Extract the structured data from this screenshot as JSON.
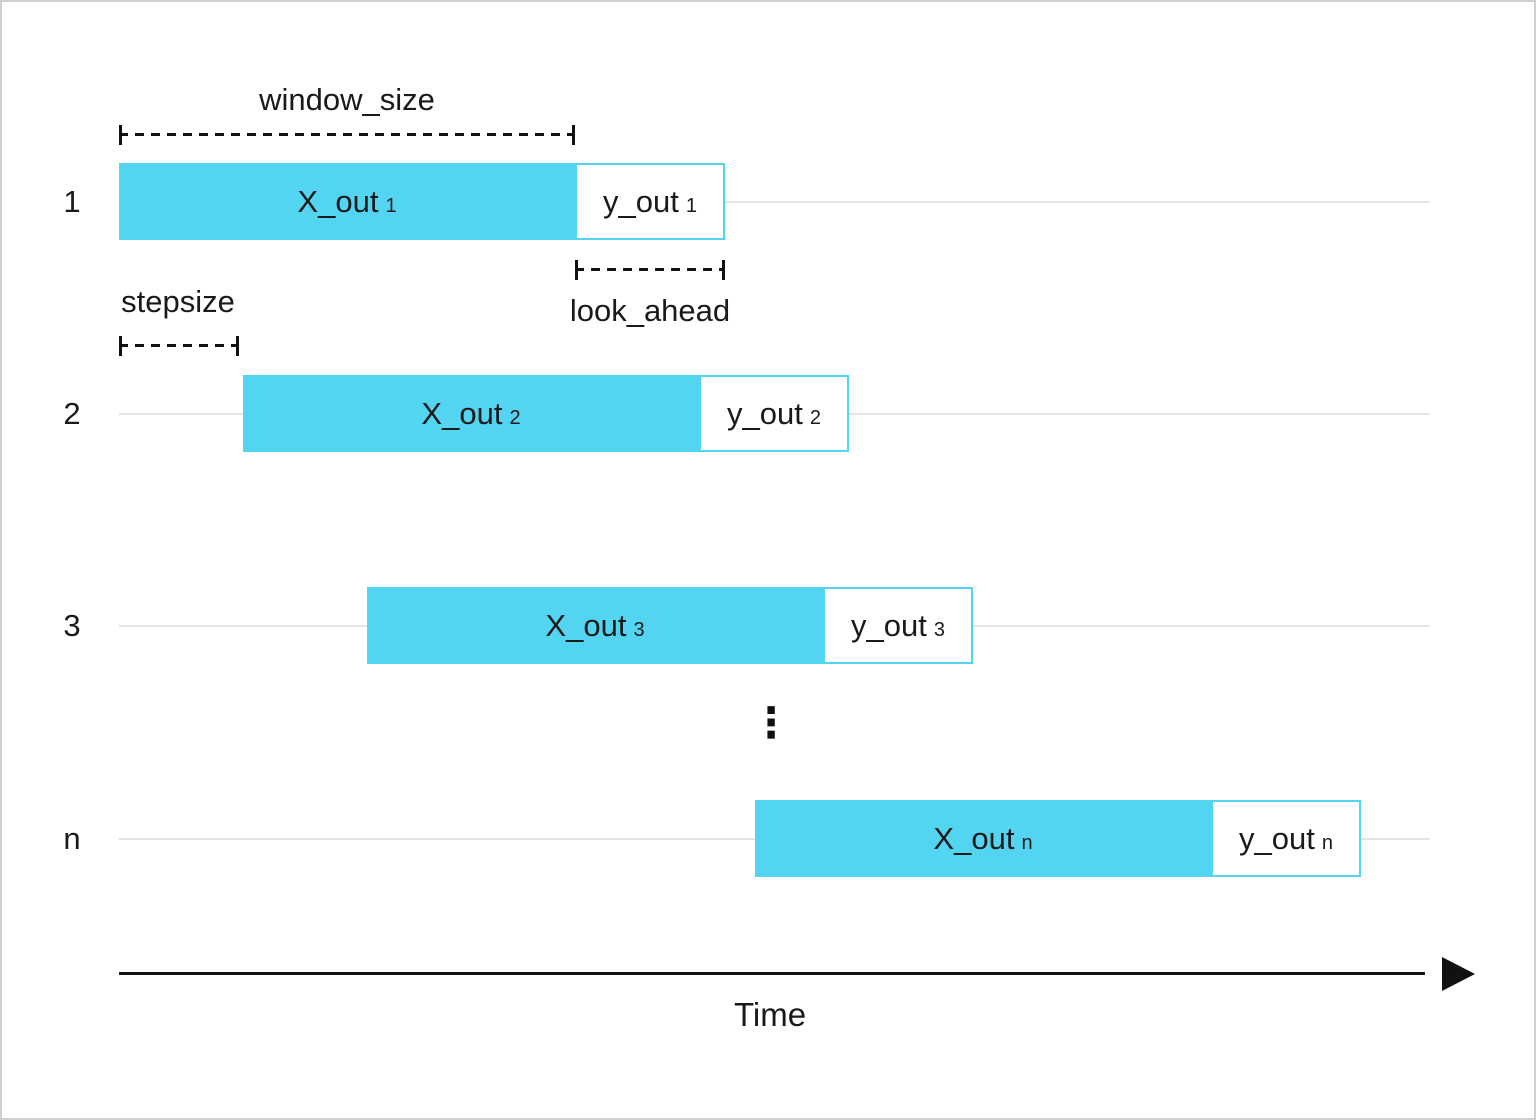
{
  "colors": {
    "bar_fill": "#53d5f2",
    "bar_border": "#53d5f2",
    "y_fill": "#ffffff",
    "row_line": "#e4e4e4",
    "axis": "#111111",
    "text": "#1a1a1a",
    "background": "#ffffff",
    "canvas_border": "#cfcfcf"
  },
  "annotations": {
    "window_size": "window_size",
    "stepsize": "stepsize",
    "look_ahead": "look_ahead",
    "ellipsis": "⋮"
  },
  "axis": {
    "label": "Time"
  },
  "rows": [
    {
      "index": "1",
      "x_label": "X_out",
      "x_sub": "1",
      "y_label": "y_out",
      "y_sub": "1"
    },
    {
      "index": "2",
      "x_label": "X_out",
      "x_sub": "2",
      "y_label": "y_out",
      "y_sub": "2"
    },
    {
      "index": "3",
      "x_label": "X_out",
      "x_sub": "3",
      "y_label": "y_out",
      "y_sub": "3"
    },
    {
      "index": "n",
      "x_label": "X_out",
      "x_sub": "n",
      "y_label": "y_out",
      "y_sub": "n"
    }
  ]
}
